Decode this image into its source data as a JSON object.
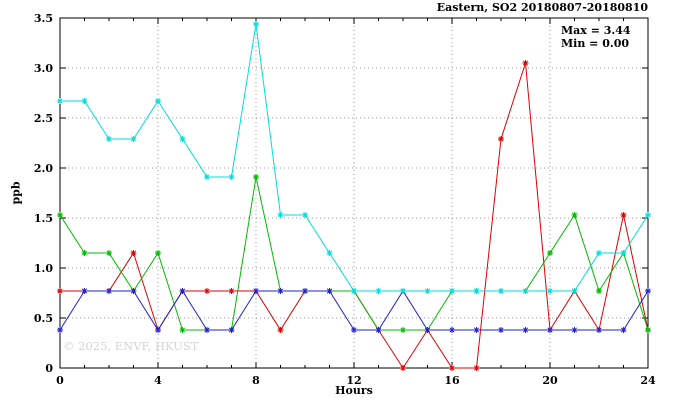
{
  "title": "Eastern, SO2 20180807-20180810",
  "annotation": {
    "max_label": "Max = 3.44",
    "min_label": "Min = 0.00"
  },
  "watermark": "© 2025, ENVF, HKUST",
  "chart_data": {
    "type": "line",
    "title": "Eastern, SO2 20180807-20180810",
    "xlabel": "Hours",
    "ylabel": "ppb",
    "xlim": [
      0,
      24
    ],
    "ylim": [
      0,
      3.5
    ],
    "grid": true,
    "legend": "none",
    "marker": "asterisk",
    "x_major_ticks": [
      0,
      4,
      8,
      12,
      16,
      20,
      24
    ],
    "x_tick_labels": [
      "0",
      "4",
      "8",
      "12",
      "16",
      "20",
      "24"
    ],
    "y_major_ticks": [
      0,
      0.5,
      1.0,
      1.5,
      2.0,
      2.5,
      3.0,
      3.5
    ],
    "y_tick_labels": [
      "0",
      "0.5",
      "1.0",
      "1.5",
      "2.0",
      "2.5",
      "3.0",
      "3.5"
    ],
    "stats": {
      "max": 3.44,
      "min": 0.0
    },
    "x": [
      0,
      1,
      2,
      3,
      4,
      5,
      6,
      7,
      8,
      9,
      10,
      11,
      12,
      13,
      14,
      15,
      16,
      17,
      18,
      19,
      20,
      21,
      22,
      23,
      24
    ],
    "series": [
      {
        "name": "series-red",
        "color": "#dd0000",
        "values": [
          0.77,
          0.77,
          0.77,
          1.15,
          0.38,
          0.77,
          0.77,
          0.77,
          0.77,
          0.38,
          0.77,
          0.77,
          0.77,
          0.38,
          0.0,
          0.38,
          0.0,
          0.0,
          2.29,
          3.05,
          0.38,
          0.77,
          0.38,
          1.53,
          0.38
        ]
      },
      {
        "name": "series-green",
        "color": "#00bb00",
        "values": [
          1.53,
          1.15,
          1.15,
          0.77,
          1.15,
          0.38,
          0.38,
          0.38,
          1.91,
          0.77,
          0.77,
          0.77,
          0.77,
          0.38,
          0.38,
          0.38,
          0.77,
          0.77,
          0.77,
          0.77,
          1.15,
          1.53,
          0.77,
          1.15,
          0.38
        ]
      },
      {
        "name": "series-blue",
        "color": "#2222cc",
        "values": [
          0.38,
          0.77,
          0.77,
          0.77,
          0.38,
          0.77,
          0.38,
          0.38,
          0.77,
          0.77,
          0.77,
          0.77,
          0.38,
          0.38,
          0.77,
          0.38,
          0.38,
          0.38,
          0.38,
          0.38,
          0.38,
          0.38,
          0.38,
          0.38,
          0.77
        ]
      },
      {
        "name": "series-cyan",
        "color": "#00dddd",
        "values": [
          2.67,
          2.67,
          2.29,
          2.29,
          2.67,
          2.29,
          1.91,
          1.91,
          3.44,
          1.53,
          1.53,
          1.15,
          0.77,
          0.77,
          0.77,
          0.77,
          0.77,
          0.77,
          0.77,
          0.77,
          0.77,
          0.77,
          1.15,
          1.15,
          1.53
        ]
      }
    ]
  }
}
